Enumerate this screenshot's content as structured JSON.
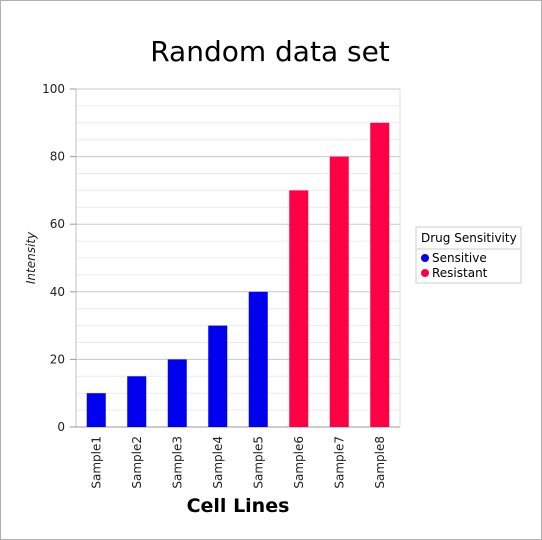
{
  "chart_data": {
    "type": "bar",
    "title": "Random data set",
    "xlabel": "Cell Lines",
    "ylabel": "Intensity",
    "ylim": [
      0,
      100
    ],
    "yticks": [
      0,
      20,
      40,
      60,
      80,
      100
    ],
    "grid": true,
    "legend_position": "right",
    "categories": [
      "Sample1",
      "Sample2",
      "Sample3",
      "Sample4",
      "Sample5",
      "Sample6",
      "Sample7",
      "Sample8"
    ],
    "values": [
      10,
      15,
      20,
      30,
      40,
      70,
      80,
      90
    ],
    "groups": [
      "Sensitive",
      "Sensitive",
      "Sensitive",
      "Sensitive",
      "Sensitive",
      "Resistant",
      "Resistant",
      "Resistant"
    ],
    "legend": {
      "title": "Drug Sensitivity",
      "items": [
        {
          "label": "Sensitive",
          "color": "#0000ee"
        },
        {
          "label": "Resistant",
          "color": "#ff0044"
        }
      ]
    }
  }
}
